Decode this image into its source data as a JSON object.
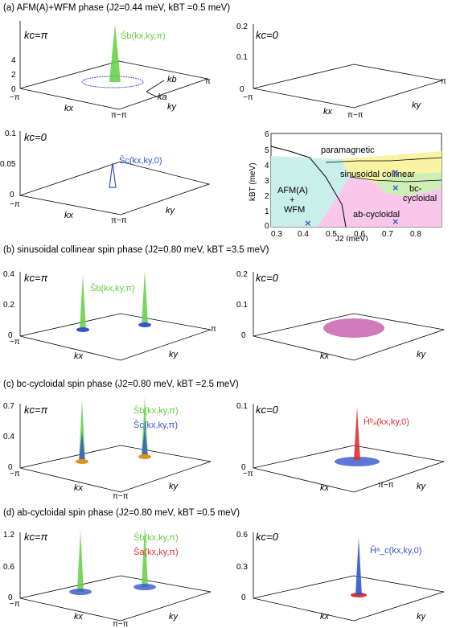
{
  "sections": [
    {
      "title": "(a) AFM(A)+WFM phase (J2=0.44 meV, kBT =0.5 meV)"
    },
    {
      "title": "(b) sinusoidal collinear spin phase (J2=0.80 meV, kBT =3.5 meV)"
    },
    {
      "title": "(c) bc-cycloidal spin phase (J2=0.80 meV, kBT =2.5 meV)"
    },
    {
      "title": "(d) ab-cycloidal spin phase (J2=0.80 meV, kBT =0.5 meV)"
    }
  ],
  "axes": {
    "kx": "kx",
    "ky": "ky",
    "minus_pi": "−π",
    "pi": "π",
    "pi_minus_pi": "π−π"
  },
  "panels": {
    "a_left": {
      "kc": "kc=π",
      "yticks": [
        "0",
        "2",
        "4"
      ],
      "label1": "Ŝb(kx,ky,π)",
      "kb": "kb",
      "ka": "ka"
    },
    "a_right": {
      "kc": "kc=0",
      "yticks": [
        "0",
        "0.1",
        "0.2"
      ]
    },
    "a_bottom": {
      "kc": "kc=0",
      "yticks": [
        "0",
        "0.05",
        "0.1"
      ],
      "label1": "Ŝc(kx,ky,0)"
    },
    "b_left": {
      "kc": "kc=π",
      "yticks": [
        "0",
        "0.2",
        "0.4"
      ],
      "label1": "Ŝb(kx,ky,π)"
    },
    "b_right": {
      "kc": "kc=0",
      "yticks": [
        "0",
        "0.1",
        "0.2"
      ]
    },
    "c_left": {
      "kc": "kc=π",
      "yticks": [
        "0",
        "0.4",
        "0.7"
      ],
      "label1": "Ŝb(kx,ky,π)",
      "label2": "Ŝc(kx,ky,π)"
    },
    "c_right": {
      "kc": "kc=0",
      "yticks": [
        "0",
        "0.1"
      ],
      "label1": "Ĥᵇₐ(kx,ky,0)"
    },
    "d_left": {
      "kc": "kc=π",
      "yticks": [
        "0",
        "0.6",
        "1.2"
      ],
      "label1": "Ŝb(kx,ky,π)",
      "label2": "Ŝa(kx,ky,π)"
    },
    "d_right": {
      "kc": "kc=0",
      "yticks": [
        "0",
        "0.3",
        "0.6"
      ],
      "label1": "Ĥᵃ_c(kx,ky,0)"
    }
  },
  "phase_diagram": {
    "ylabel": "kBT (meV)",
    "xlabel": "J2 (meV)",
    "xticks": [
      "0.3",
      "0.4",
      "0.5",
      "0.6",
      "0.7",
      "0.8"
    ],
    "yticks": [
      "0",
      "1",
      "2",
      "3",
      "4",
      "5",
      "6"
    ],
    "regions": {
      "paramagnetic": "paramagnetic",
      "sinusoidal": "sinusoidal collinear",
      "afm": "AFM(A)",
      "afm_plus": "+",
      "afm_wfm": "WFM",
      "bc": "bc-",
      "bc2": "cycloidal",
      "ab": "ab-cycloidal"
    },
    "colors": {
      "paramagnetic": "#ffffff",
      "sinusoidal": "#f9f3a4",
      "afm": "#c9efe9",
      "bc": "#cdeeb4",
      "ab": "#f8c7ea",
      "marker": "#3a5fd0"
    }
  },
  "colors": {
    "green": "#5fcf3f",
    "blue": "#3355cc",
    "red": "#e03030",
    "orange": "#e09020"
  }
}
